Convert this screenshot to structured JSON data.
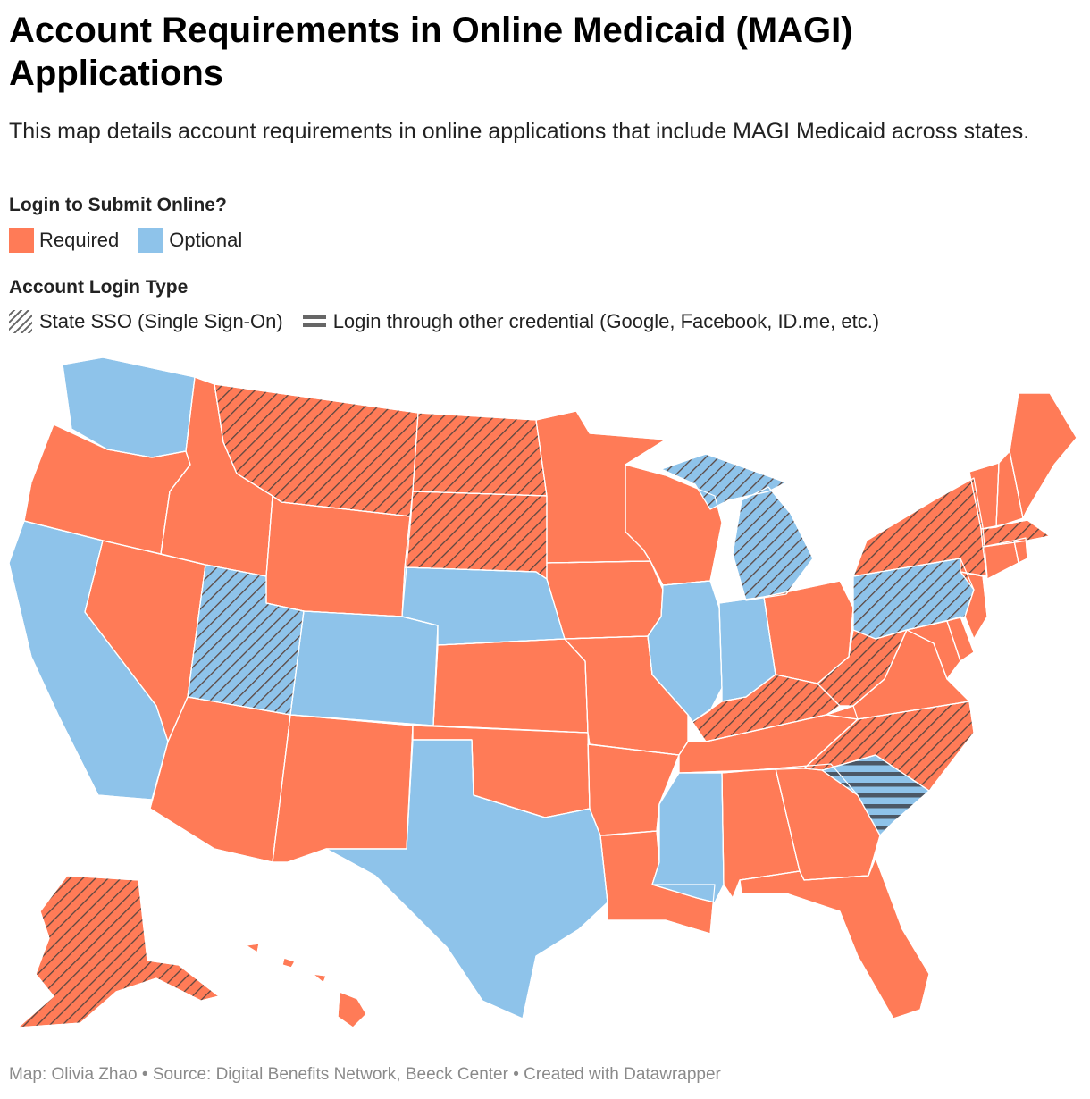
{
  "title": "Account Requirements in Online Medicaid (MAGI) Applications",
  "subtitle": "This map details account requirements in online applications that include MAGI Medicaid across states.",
  "colors": {
    "required": "#ff7b57",
    "optional": "#8ec3ea",
    "pattern_line": "#5a5a5a",
    "border": "#ffffff"
  },
  "legend": {
    "submit": {
      "title": "Login to Submit Online?",
      "items": [
        {
          "label": "Required",
          "color": "#ff7b57"
        },
        {
          "label": "Optional",
          "color": "#8ec3ea"
        }
      ]
    },
    "login_type": {
      "title": "Account Login Type",
      "items": [
        {
          "label": "State SSO (Single Sign-On)",
          "pattern": "diagonal-hatch"
        },
        {
          "label": "Login through other credential (Google, Facebook, ID.me, etc.)",
          "pattern": "horizontal-stripes"
        }
      ]
    }
  },
  "map_data": {
    "type": "choropleth",
    "regions": [
      {
        "code": "WA",
        "submit": "Optional",
        "login": ""
      },
      {
        "code": "OR",
        "submit": "Required",
        "login": ""
      },
      {
        "code": "CA",
        "submit": "Optional",
        "login": ""
      },
      {
        "code": "NV",
        "submit": "Required",
        "login": ""
      },
      {
        "code": "ID",
        "submit": "Required",
        "login": ""
      },
      {
        "code": "MT",
        "submit": "Required",
        "login": "State SSO"
      },
      {
        "code": "WY",
        "submit": "Required",
        "login": ""
      },
      {
        "code": "UT",
        "submit": "Optional",
        "login": "State SSO"
      },
      {
        "code": "AZ",
        "submit": "Required",
        "login": ""
      },
      {
        "code": "CO",
        "submit": "Optional",
        "login": ""
      },
      {
        "code": "NM",
        "submit": "Required",
        "login": ""
      },
      {
        "code": "ND",
        "submit": "Required",
        "login": "State SSO"
      },
      {
        "code": "SD",
        "submit": "Required",
        "login": "State SSO"
      },
      {
        "code": "NE",
        "submit": "Optional",
        "login": ""
      },
      {
        "code": "KS",
        "submit": "Required",
        "login": ""
      },
      {
        "code": "OK",
        "submit": "Required",
        "login": ""
      },
      {
        "code": "TX",
        "submit": "Optional",
        "login": ""
      },
      {
        "code": "MN",
        "submit": "Required",
        "login": ""
      },
      {
        "code": "IA",
        "submit": "Required",
        "login": ""
      },
      {
        "code": "MO",
        "submit": "Required",
        "login": ""
      },
      {
        "code": "AR",
        "submit": "Required",
        "login": ""
      },
      {
        "code": "LA",
        "submit": "Required",
        "login": ""
      },
      {
        "code": "WI",
        "submit": "Required",
        "login": ""
      },
      {
        "code": "IL",
        "submit": "Optional",
        "login": ""
      },
      {
        "code": "MI",
        "submit": "Optional",
        "login": "State SSO"
      },
      {
        "code": "IN",
        "submit": "Optional",
        "login": ""
      },
      {
        "code": "OH",
        "submit": "Required",
        "login": ""
      },
      {
        "code": "KY",
        "submit": "Required",
        "login": "State SSO"
      },
      {
        "code": "TN",
        "submit": "Required",
        "login": ""
      },
      {
        "code": "MS",
        "submit": "Optional",
        "login": ""
      },
      {
        "code": "AL",
        "submit": "Required",
        "login": ""
      },
      {
        "code": "GA",
        "submit": "Required",
        "login": ""
      },
      {
        "code": "FL",
        "submit": "Required",
        "login": ""
      },
      {
        "code": "SC",
        "submit": "Optional",
        "login": "Other credential"
      },
      {
        "code": "NC",
        "submit": "Required",
        "login": "State SSO"
      },
      {
        "code": "VA",
        "submit": "Required",
        "login": ""
      },
      {
        "code": "WV",
        "submit": "Required",
        "login": "State SSO"
      },
      {
        "code": "MD",
        "submit": "Required",
        "login": ""
      },
      {
        "code": "DE",
        "submit": "Required",
        "login": ""
      },
      {
        "code": "PA",
        "submit": "Optional",
        "login": "State SSO"
      },
      {
        "code": "NJ",
        "submit": "Required",
        "login": ""
      },
      {
        "code": "NY",
        "submit": "Required",
        "login": "State SSO"
      },
      {
        "code": "CT",
        "submit": "Required",
        "login": ""
      },
      {
        "code": "RI",
        "submit": "Required",
        "login": ""
      },
      {
        "code": "MA",
        "submit": "Required",
        "login": "State SSO"
      },
      {
        "code": "VT",
        "submit": "Required",
        "login": ""
      },
      {
        "code": "NH",
        "submit": "Required",
        "login": ""
      },
      {
        "code": "ME",
        "submit": "Required",
        "login": ""
      },
      {
        "code": "AK",
        "submit": "Required",
        "login": "State SSO"
      },
      {
        "code": "HI",
        "submit": "Required",
        "login": ""
      }
    ]
  },
  "footer": "Map: Olivia Zhao • Source: Digital Benefits Network, Beeck Center • Created with Datawrapper"
}
